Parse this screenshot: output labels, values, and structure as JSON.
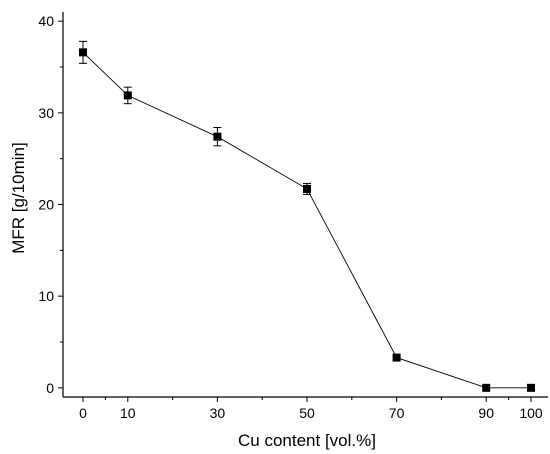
{
  "chart_data": {
    "type": "line",
    "title": "",
    "xlabel": "Cu content [vol.%]",
    "ylabel": "MFR [g/10min]",
    "x_tick_labels": [
      "0",
      "10",
      "30",
      "50",
      "70",
      "90",
      "100"
    ],
    "y_ticks": [
      0,
      10,
      20,
      30,
      40
    ],
    "ylim": [
      -1,
      41
    ],
    "grid": false,
    "legend": "none",
    "marker": "square",
    "color": "#000000",
    "series": [
      {
        "x": [
          0,
          10,
          30,
          50,
          70,
          90,
          100
        ],
        "values": [
          36.6,
          31.9,
          27.4,
          21.7,
          3.3,
          0.0,
          0.0
        ],
        "error": [
          1.2,
          0.9,
          1.0,
          0.6,
          0,
          0,
          0
        ]
      }
    ]
  }
}
